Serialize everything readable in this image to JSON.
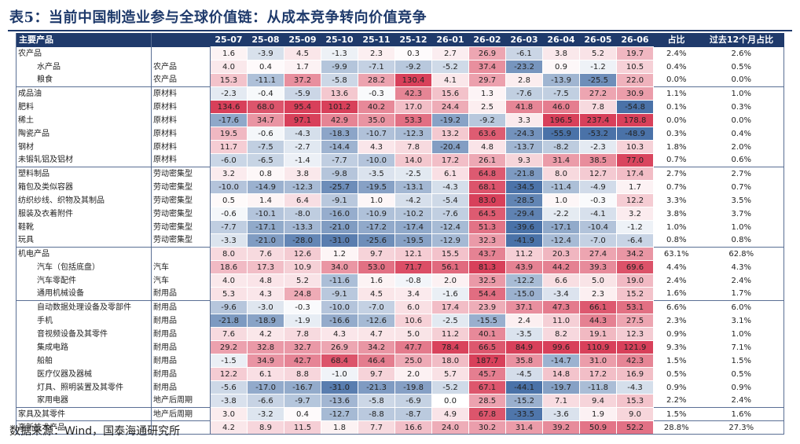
{
  "title": "表5：当前中国制造业参与全球价值链：从成本竞争转向价值竞争",
  "headers": [
    "主要产品",
    "",
    "25-07",
    "25-08",
    "25-09",
    "25-10",
    "25-11",
    "25-12",
    "26-01",
    "26-02",
    "26-03",
    "26-04",
    "26-05",
    "26-06",
    "占比",
    "过去12个月占比"
  ],
  "rows": [
    {
      "name": "农产品",
      "cat": "",
      "indent": 0,
      "vals": [
        "1.6",
        "-3.9",
        "4.5",
        "-1.3",
        "2.3",
        "0.3",
        "2.7",
        "26.9",
        "-6.1",
        "3.8",
        "5.2",
        "19.7"
      ],
      "share": "2.4%",
      "share12": "2.6%"
    },
    {
      "name": "水产品",
      "cat": "农产品",
      "indent": 2,
      "vals": [
        "4.0",
        "0.4",
        "1.7",
        "-9.9",
        "-7.1",
        "-9.2",
        "-5.2",
        "37.4",
        "-23.2",
        "0.9",
        "-1.2",
        "10.5"
      ],
      "share": "0.4%",
      "share12": "0.5%"
    },
    {
      "name": "粮食",
      "cat": "农产品",
      "indent": 2,
      "vals": [
        "15.3",
        "-11.1",
        "37.2",
        "-5.8",
        "28.2",
        "130.4",
        "4.1",
        "29.7",
        "2.8",
        "-13.9",
        "-25.5",
        "22.0"
      ],
      "share": "0.0%",
      "share12": "0.0%"
    },
    {
      "name": "成品油",
      "cat": "原材料",
      "indent": 0,
      "sep": true,
      "vals": [
        "-2.3",
        "-0.4",
        "-5.9",
        "13.6",
        "-0.3",
        "42.3",
        "15.6",
        "1.3",
        "-7.6",
        "-7.5",
        "27.2",
        "30.9"
      ],
      "share": "1.1%",
      "share12": "1.0%"
    },
    {
      "name": "肥料",
      "cat": "原材料",
      "indent": 0,
      "vals": [
        "134.6",
        "68.0",
        "95.4",
        "101.2",
        "40.2",
        "17.0",
        "24.4",
        "2.5",
        "41.8",
        "46.0",
        "7.8",
        "-54.8"
      ],
      "share": "0.1%",
      "share12": "0.3%"
    },
    {
      "name": "稀土",
      "cat": "原材料",
      "indent": 0,
      "vals": [
        "-17.6",
        "34.7",
        "97.1",
        "42.9",
        "35.0",
        "53.3",
        "-19.2",
        "-9.2",
        "3.3",
        "196.5",
        "237.4",
        "178.8"
      ],
      "share": "0.0%",
      "share12": "0.0%"
    },
    {
      "name": "陶瓷产品",
      "cat": "原材料",
      "indent": 0,
      "vals": [
        "19.5",
        "-0.6",
        "-4.3",
        "-18.3",
        "-10.7",
        "-12.3",
        "13.2",
        "63.6",
        "-24.3",
        "-55.9",
        "-53.2",
        "-48.9"
      ],
      "share": "0.3%",
      "share12": "0.4%"
    },
    {
      "name": "钢材",
      "cat": "原材料",
      "indent": 0,
      "vals": [
        "11.7",
        "-7.5",
        "-2.7",
        "-14.4",
        "4.3",
        "7.8",
        "-20.4",
        "4.8",
        "-13.7",
        "-8.2",
        "-2.3",
        "10.3"
      ],
      "share": "1.8%",
      "share12": "2.0%"
    },
    {
      "name": "未锻轧铝及铝材",
      "cat": "原材料",
      "indent": 0,
      "vals": [
        "-6.0",
        "-6.5",
        "-1.4",
        "-7.7",
        "-10.0",
        "14.0",
        "17.2",
        "26.1",
        "9.3",
        "31.4",
        "38.5",
        "77.0"
      ],
      "share": "0.7%",
      "share12": "0.6%"
    },
    {
      "name": "塑料制品",
      "cat": "劳动密集型",
      "indent": 0,
      "sep": true,
      "vals": [
        "3.2",
        "0.8",
        "3.8",
        "-9.8",
        "-3.5",
        "-2.5",
        "6.1",
        "64.8",
        "-21.8",
        "8.0",
        "12.7",
        "17.4"
      ],
      "share": "2.7%",
      "share12": "2.7%"
    },
    {
      "name": "箱包及类似容器",
      "cat": "劳动密集型",
      "indent": 0,
      "vals": [
        "-10.0",
        "-14.9",
        "-12.3",
        "-25.7",
        "-19.5",
        "-13.1",
        "-4.3",
        "68.1",
        "-34.5",
        "-11.4",
        "-4.9",
        "1.7"
      ],
      "share": "0.7%",
      "share12": "0.7%"
    },
    {
      "name": "纺织纱线、织物及其制品",
      "cat": "劳动密集型",
      "indent": 0,
      "vals": [
        "0.5",
        "1.4",
        "6.4",
        "-9.1",
        "1.0",
        "-4.2",
        "-5.4",
        "83.0",
        "-28.5",
        "1.0",
        "-0.3",
        "12.2"
      ],
      "share": "3.3%",
      "share12": "3.5%"
    },
    {
      "name": "服装及衣着附件",
      "cat": "劳动密集型",
      "indent": 0,
      "vals": [
        "-0.6",
        "-10.1",
        "-8.0",
        "-16.0",
        "-10.9",
        "-10.2",
        "-7.6",
        "64.5",
        "-29.4",
        "-2.2",
        "-4.1",
        "3.2"
      ],
      "share": "3.8%",
      "share12": "3.7%"
    },
    {
      "name": "鞋靴",
      "cat": "劳动密集型",
      "indent": 0,
      "vals": [
        "-7.7",
        "-17.1",
        "-13.3",
        "-21.0",
        "-17.2",
        "-17.4",
        "-12.4",
        "51.3",
        "-39.6",
        "-17.1",
        "-10.4",
        "-1.2"
      ],
      "share": "1.0%",
      "share12": "1.0%"
    },
    {
      "name": "玩具",
      "cat": "劳动密集型",
      "indent": 0,
      "vals": [
        "-3.3",
        "-21.0",
        "-28.0",
        "-31.0",
        "-25.6",
        "-19.5",
        "-12.9",
        "32.3",
        "-41.9",
        "-12.4",
        "-7.0",
        "-6.4"
      ],
      "share": "0.8%",
      "share12": "0.8%"
    },
    {
      "name": "机电产品",
      "cat": "",
      "indent": 0,
      "sep": true,
      "vals": [
        "8.0",
        "7.6",
        "12.6",
        "1.2",
        "9.7",
        "12.1",
        "15.5",
        "43.7",
        "11.2",
        "20.3",
        "27.4",
        "34.2"
      ],
      "share": "63.1%",
      "share12": "62.8%"
    },
    {
      "name": "汽车（包括底盘）",
      "cat": "汽车",
      "indent": 2,
      "vals": [
        "18.6",
        "17.3",
        "10.9",
        "34.0",
        "53.0",
        "71.7",
        "56.1",
        "81.3",
        "43.9",
        "44.2",
        "39.3",
        "69.6"
      ],
      "share": "4.4%",
      "share12": "4.3%"
    },
    {
      "name": "汽车零配件",
      "cat": "汽车",
      "indent": 2,
      "vals": [
        "4.0",
        "4.8",
        "5.2",
        "-11.6",
        "1.6",
        "-0.8",
        "2.0",
        "32.5",
        "-12.2",
        "6.6",
        "5.0",
        "19.0"
      ],
      "share": "2.4%",
      "share12": "2.4%"
    },
    {
      "name": "通用机械设备",
      "cat": "耐用品",
      "indent": 2,
      "vals": [
        "5.3",
        "4.3",
        "24.8",
        "-9.1",
        "4.5",
        "3.4",
        "-1.6",
        "54.4",
        "-15.0",
        "-3.4",
        "2.3",
        "15.2"
      ],
      "share": "1.6%",
      "share12": "1.7%"
    },
    {
      "name": "自动数据处理设备及零部件",
      "cat": "耐用品",
      "indent": 2,
      "sep": true,
      "vals": [
        "-9.6",
        "-3.0",
        "-0.3",
        "-10.0",
        "-7.0",
        "6.0",
        "17.4",
        "23.9",
        "37.1",
        "47.3",
        "66.1",
        "53.1"
      ],
      "share": "6.6%",
      "share12": "6.0%"
    },
    {
      "name": "手机",
      "cat": "耐用品",
      "indent": 2,
      "vals": [
        "-21.8",
        "-18.9",
        "-1.9",
        "-16.6",
        "-12.6",
        "10.6",
        "-2.5",
        "-15.5",
        "2.4",
        "11.0",
        "44.3",
        "27.5"
      ],
      "share": "2.3%",
      "share12": "3.1%"
    },
    {
      "name": "音视频设备及其零件",
      "cat": "耐用品",
      "indent": 2,
      "vals": [
        "7.6",
        "4.2",
        "7.8",
        "4.3",
        "4.7",
        "5.0",
        "11.2",
        "40.1",
        "-3.5",
        "8.2",
        "19.1",
        "12.3"
      ],
      "share": "0.9%",
      "share12": "1.0%"
    },
    {
      "name": "集成电路",
      "cat": "耐用品",
      "indent": 2,
      "vals": [
        "29.2",
        "32.8",
        "32.7",
        "26.9",
        "34.2",
        "47.7",
        "78.4",
        "66.5",
        "84.9",
        "99.6",
        "110.9",
        "121.9"
      ],
      "share": "9.3%",
      "share12": "7.1%"
    },
    {
      "name": "船舶",
      "cat": "耐用品",
      "indent": 2,
      "vals": [
        "-1.5",
        "34.9",
        "42.7",
        "68.4",
        "46.4",
        "25.0",
        "18.0",
        "187.7",
        "35.8",
        "-14.7",
        "31.0",
        "42.3"
      ],
      "share": "1.5%",
      "share12": "1.5%"
    },
    {
      "name": "医疗仪器及器械",
      "cat": "耐用品",
      "indent": 2,
      "vals": [
        "12.2",
        "6.1",
        "8.8",
        "-1.0",
        "9.7",
        "2.0",
        "5.7",
        "45.7",
        "-4.5",
        "14.8",
        "17.2",
        "16.9"
      ],
      "share": "0.5%",
      "share12": "0.5%"
    },
    {
      "name": "灯具、照明装置及其零件",
      "cat": "耐用品",
      "indent": 2,
      "vals": [
        "-5.6",
        "-17.0",
        "-16.7",
        "-31.0",
        "-21.3",
        "-19.8",
        "-5.2",
        "67.1",
        "-44.1",
        "-19.7",
        "-11.8",
        "-4.3"
      ],
      "share": "0.9%",
      "share12": "0.9%"
    },
    {
      "name": "家用电器",
      "cat": "地产后周期",
      "indent": 2,
      "vals": [
        "-3.8",
        "-6.6",
        "-9.7",
        "-13.6",
        "-5.8",
        "-6.9",
        "0.0",
        "28.5",
        "-15.2",
        "7.1",
        "9.4",
        "15.3"
      ],
      "share": "2.2%",
      "share12": "2.4%"
    },
    {
      "name": "家具及其零件",
      "cat": "地产后周期",
      "indent": 0,
      "sep": true,
      "vals": [
        "3.0",
        "-3.2",
        "0.4",
        "-12.7",
        "-8.8",
        "-8.7",
        "4.9",
        "67.8",
        "-33.5",
        "-3.6",
        "1.9",
        "9.0"
      ],
      "share": "1.5%",
      "share12": "1.6%"
    },
    {
      "name": "高新技术产品",
      "cat": "",
      "indent": 0,
      "sep": true,
      "vals": [
        "4.2",
        "8.9",
        "11.5",
        "1.8",
        "7.7",
        "16.6",
        "24.0",
        "30.2",
        "31.4",
        "39.2",
        "50.9",
        "52.2"
      ],
      "share": "28.8%",
      "share12": "27.3%"
    }
  ],
  "source": "数据来源：Wind，国泰海通研究所",
  "colors": {
    "header_bg": "#1f3a6b",
    "neg_deep": "#4a72a8",
    "pos_deep": "#d8405a",
    "border": "#5a6f94"
  }
}
